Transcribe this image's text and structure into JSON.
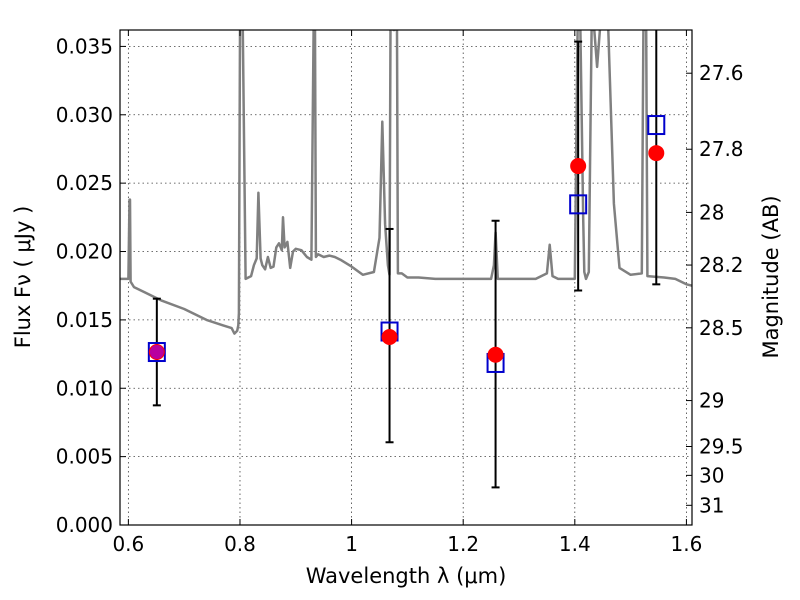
{
  "chart_data": {
    "type": "scatter",
    "title": "",
    "xlabel": "Wavelength  λ (μm)",
    "ylabel": "Flux  Fν  ( μJy )",
    "ylabel_right": "Magnitude (AB)",
    "xlim": [
      0.585,
      1.61
    ],
    "ylim": [
      0.0,
      0.0362
    ],
    "grid": true,
    "x_ticks": [
      0.6,
      0.8,
      1.0,
      1.2,
      1.4,
      1.6
    ],
    "x_tick_labels": [
      "0.6",
      "0.8",
      "1",
      "1.2",
      "1.4",
      "1.6"
    ],
    "y_ticks": [
      0.0,
      0.005,
      0.01,
      0.015,
      0.02,
      0.025,
      0.03,
      0.035
    ],
    "y_tick_labels": [
      "0.000",
      "0.005",
      "0.010",
      "0.015",
      "0.020",
      "0.025",
      "0.030",
      "0.035"
    ],
    "right_ticks": [
      {
        "label": "27.6",
        "flux": 0.03304
      },
      {
        "label": "27.8",
        "flux": 0.02748
      },
      {
        "label": "28",
        "flux": 0.02286
      },
      {
        "label": "28.2",
        "flux": 0.01901
      },
      {
        "label": "28.5",
        "flux": 0.01442
      },
      {
        "label": "29",
        "flux": 0.0091
      },
      {
        "label": "29.5",
        "flux": 0.00574
      },
      {
        "label": "30",
        "flux": 0.00363
      },
      {
        "label": "31",
        "flux": 0.00144
      }
    ],
    "series": [
      {
        "name": "spectrum",
        "style": "line",
        "color": "#808080",
        "x": [
          0.585,
          0.6,
          0.602,
          0.603,
          0.604,
          0.61,
          0.63,
          0.66,
          0.7,
          0.74,
          0.77,
          0.785,
          0.79,
          0.795,
          0.797,
          0.798,
          0.8,
          0.803,
          0.805,
          0.81,
          0.82,
          0.825,
          0.83,
          0.833,
          0.837,
          0.84,
          0.845,
          0.85,
          0.855,
          0.86,
          0.865,
          0.87,
          0.875,
          0.877,
          0.88,
          0.885,
          0.89,
          0.895,
          0.9,
          0.91,
          0.92,
          0.928,
          0.932,
          0.934,
          0.936,
          0.94,
          0.95,
          0.96,
          0.97,
          0.98,
          1.0,
          1.02,
          1.04,
          1.05,
          1.055,
          1.06,
          1.065,
          1.068,
          1.07,
          1.073,
          1.075,
          1.077,
          1.079,
          1.081,
          1.083,
          1.09,
          1.1,
          1.12,
          1.15,
          1.2,
          1.25,
          1.255,
          1.258,
          1.262,
          1.27,
          1.3,
          1.33,
          1.35,
          1.355,
          1.36,
          1.37,
          1.39,
          1.4,
          1.405,
          1.41,
          1.415,
          1.417,
          1.42,
          1.425,
          1.43,
          1.435,
          1.44,
          1.445,
          1.45,
          1.46,
          1.47,
          1.48,
          1.5,
          1.52,
          1.523,
          1.528,
          1.53,
          1.56,
          1.58,
          1.6,
          1.61
        ],
        "y": [
          0.018,
          0.018,
          0.0238,
          0.0238,
          0.0178,
          0.0174,
          0.017,
          0.0164,
          0.0158,
          0.015,
          0.0146,
          0.0144,
          0.014,
          0.0142,
          0.0146,
          0.0155,
          0.0362,
          0.04,
          0.0362,
          0.018,
          0.0182,
          0.019,
          0.0195,
          0.0243,
          0.0195,
          0.019,
          0.0187,
          0.0196,
          0.0188,
          0.0189,
          0.0203,
          0.0206,
          0.0201,
          0.0225,
          0.0203,
          0.0207,
          0.0188,
          0.02,
          0.0202,
          0.0201,
          0.0196,
          0.0194,
          0.0362,
          0.04,
          0.0196,
          0.0198,
          0.0196,
          0.0197,
          0.0196,
          0.0194,
          0.0189,
          0.0183,
          0.0185,
          0.021,
          0.0295,
          0.022,
          0.019,
          0.0183,
          0.04,
          0.04,
          0.0362,
          0.0362,
          0.04,
          0.04,
          0.0184,
          0.0184,
          0.0181,
          0.0181,
          0.018,
          0.018,
          0.018,
          0.019,
          0.0214,
          0.018,
          0.018,
          0.018,
          0.018,
          0.0184,
          0.0205,
          0.0182,
          0.018,
          0.018,
          0.018,
          0.0362,
          0.0362,
          0.0224,
          0.0185,
          0.018,
          0.0185,
          0.0362,
          0.0362,
          0.0335,
          0.0362,
          0.04,
          0.0362,
          0.0235,
          0.0188,
          0.0183,
          0.0184,
          0.0362,
          0.0362,
          0.0182,
          0.0181,
          0.018,
          0.0176,
          0.0175
        ]
      },
      {
        "name": "model photometry",
        "style": "open-square",
        "color": "#0000cc",
        "x": [
          0.651,
          1.068,
          1.258,
          1.406,
          1.546
        ],
        "y": [
          0.01265,
          0.01415,
          0.01185,
          0.02345,
          0.02925
        ]
      },
      {
        "name": "observed photometry",
        "style": "filled-circle",
        "color": "#ff0000",
        "x": [
          0.651,
          1.068,
          1.258,
          1.406,
          1.546
        ],
        "y": [
          0.01265,
          0.01375,
          0.01245,
          0.02625,
          0.0272
        ],
        "err_low": [
          0.0039,
          0.0077,
          0.0097,
          0.0091,
          0.0096
        ],
        "err_high": [
          0.0039,
          0.0079,
          0.0098,
          0.0091,
          0.0096
        ]
      }
    ]
  }
}
